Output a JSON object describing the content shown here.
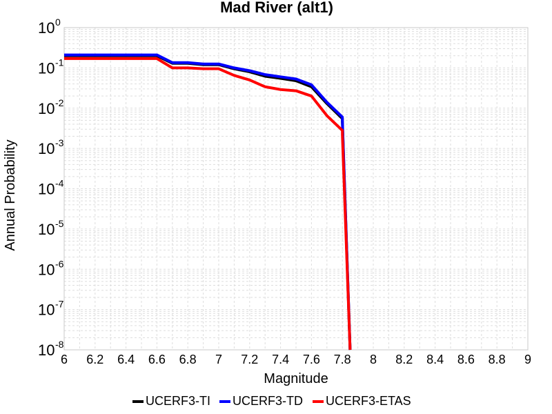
{
  "chart_data": {
    "type": "line",
    "title": "Mad River (alt1)",
    "xlabel": "Magnitude",
    "ylabel": "Annual Probability",
    "xlim": [
      6,
      9
    ],
    "ylim": [
      1e-08,
      1
    ],
    "yscale": "log",
    "grid": true,
    "legend_position": "bottom",
    "xticks": [
      "6",
      "6.2",
      "6.4",
      "6.6",
      "6.8",
      "7",
      "7.2",
      "7.4",
      "7.6",
      "7.8",
      "8",
      "8.2",
      "8.4",
      "8.6",
      "8.8",
      "9"
    ],
    "yticks": [
      {
        "base": "10",
        "exp": "0"
      },
      {
        "base": "10",
        "exp": "-1"
      },
      {
        "base": "10",
        "exp": "-2"
      },
      {
        "base": "10",
        "exp": "-3"
      },
      {
        "base": "10",
        "exp": "-4"
      },
      {
        "base": "10",
        "exp": "-5"
      },
      {
        "base": "10",
        "exp": "-6"
      },
      {
        "base": "10",
        "exp": "-7"
      },
      {
        "base": "10",
        "exp": "-8"
      }
    ],
    "series": [
      {
        "name": "UCERF3-TI",
        "color": "#000000",
        "x": [
          6.0,
          6.1,
          6.2,
          6.3,
          6.4,
          6.5,
          6.6,
          6.7,
          6.8,
          6.9,
          7.0,
          7.1,
          7.2,
          7.3,
          7.4,
          7.5,
          7.6,
          7.7,
          7.8,
          7.8,
          7.85
        ],
        "y": [
          0.2,
          0.2,
          0.2,
          0.2,
          0.2,
          0.2,
          0.2,
          0.13,
          0.13,
          0.12,
          0.12,
          0.095,
          0.08,
          0.062,
          0.055,
          0.048,
          0.034,
          0.013,
          0.0055,
          0.0045,
          1e-08
        ]
      },
      {
        "name": "UCERF3-TD",
        "color": "#0000ff",
        "x": [
          6.0,
          6.1,
          6.2,
          6.3,
          6.4,
          6.5,
          6.6,
          6.7,
          6.8,
          6.9,
          7.0,
          7.1,
          7.2,
          7.3,
          7.4,
          7.5,
          7.6,
          7.7,
          7.8,
          7.8,
          7.85
        ],
        "y": [
          0.21,
          0.21,
          0.21,
          0.21,
          0.21,
          0.21,
          0.21,
          0.135,
          0.135,
          0.125,
          0.125,
          0.1,
          0.085,
          0.068,
          0.06,
          0.053,
          0.038,
          0.014,
          0.006,
          0.005,
          1e-08
        ]
      },
      {
        "name": "UCERF3-ETAS",
        "color": "#ff0000",
        "x": [
          6.0,
          6.1,
          6.2,
          6.3,
          6.4,
          6.5,
          6.6,
          6.7,
          6.8,
          6.9,
          7.0,
          7.1,
          7.2,
          7.3,
          7.4,
          7.5,
          7.6,
          7.7,
          7.8,
          7.8,
          7.85
        ],
        "y": [
          0.17,
          0.17,
          0.17,
          0.17,
          0.17,
          0.17,
          0.17,
          0.1,
          0.1,
          0.095,
          0.095,
          0.065,
          0.05,
          0.034,
          0.029,
          0.027,
          0.02,
          0.0065,
          0.0028,
          0.0022,
          1e-08
        ]
      }
    ]
  }
}
